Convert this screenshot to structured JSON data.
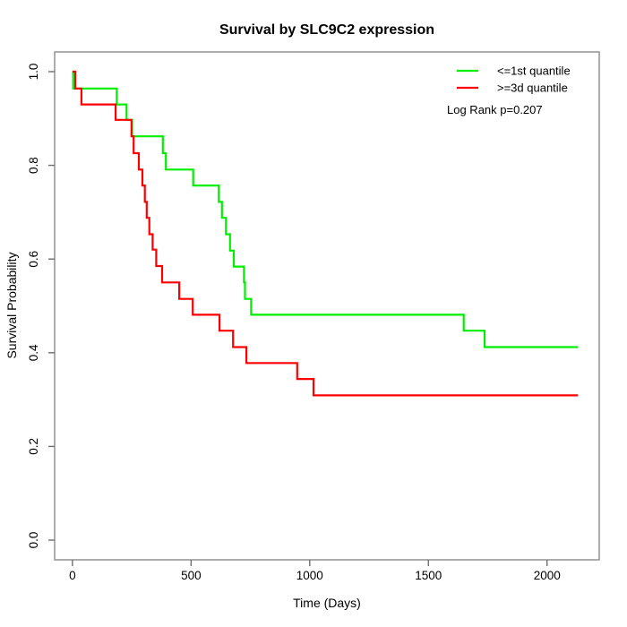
{
  "title": "Survival by SLC9C2 expression",
  "axes": {
    "x": {
      "label": "Time (Days)",
      "ticks": [
        0,
        500,
        1000,
        1500,
        2000
      ]
    },
    "y": {
      "label": "Survival Probability",
      "ticks": [
        {
          "label": "0.0",
          "value": 0.0
        },
        {
          "label": "0.2",
          "value": 0.2
        },
        {
          "label": "0.4",
          "value": 0.4
        },
        {
          "label": "0.6",
          "value": 0.6
        },
        {
          "label": "0.8",
          "value": 0.8
        },
        {
          "label": "1.0",
          "value": 1.0
        }
      ]
    }
  },
  "legend": {
    "items": [
      {
        "label": "<=1st quantile",
        "color": "#00EE00"
      },
      {
        "label": ">=3d quantile",
        "color": "#FF0000"
      }
    ],
    "note": "Log Rank p=0.207"
  },
  "chart_data": {
    "type": "line",
    "subtype": "kaplan-meier-step",
    "title": "Survival by SLC9C2 expression",
    "xlabel": "Time (Days)",
    "ylabel": "Survival Probability",
    "xlim": [
      -75,
      2220
    ],
    "ylim": [
      -0.042,
      1.042
    ],
    "grid": false,
    "legend_position": "top-right",
    "annotations": [
      "Log Rank p=0.207"
    ],
    "series": [
      {
        "name": "<=1st quantile",
        "color": "#00EE00",
        "end_time": 2130,
        "steps": [
          [
            0,
            1.0
          ],
          [
            3,
            0.964
          ],
          [
            187,
            0.93
          ],
          [
            228,
            0.897
          ],
          [
            251,
            0.862
          ],
          [
            381,
            0.826
          ],
          [
            394,
            0.791
          ],
          [
            509,
            0.757
          ],
          [
            617,
            0.722
          ],
          [
            630,
            0.688
          ],
          [
            647,
            0.653
          ],
          [
            664,
            0.618
          ],
          [
            680,
            0.584
          ],
          [
            723,
            0.55
          ],
          [
            727,
            0.515
          ],
          [
            753,
            0.481
          ],
          [
            1649,
            0.447
          ],
          [
            1737,
            0.412
          ]
        ]
      },
      {
        "name": ">=3d quantile",
        "color": "#FF0000",
        "end_time": 2130,
        "steps": [
          [
            0,
            1.0
          ],
          [
            12,
            0.964
          ],
          [
            38,
            0.93
          ],
          [
            182,
            0.897
          ],
          [
            249,
            0.862
          ],
          [
            258,
            0.826
          ],
          [
            280,
            0.791
          ],
          [
            295,
            0.757
          ],
          [
            305,
            0.722
          ],
          [
            313,
            0.688
          ],
          [
            324,
            0.653
          ],
          [
            338,
            0.62
          ],
          [
            353,
            0.585
          ],
          [
            378,
            0.55
          ],
          [
            450,
            0.515
          ],
          [
            507,
            0.481
          ],
          [
            620,
            0.447
          ],
          [
            677,
            0.412
          ],
          [
            733,
            0.378
          ],
          [
            947,
            0.344
          ],
          [
            1016,
            0.309
          ]
        ]
      }
    ]
  }
}
